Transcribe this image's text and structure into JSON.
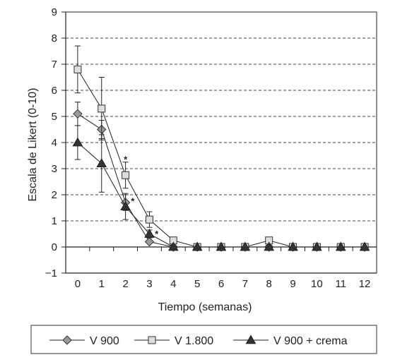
{
  "chart_data": {
    "type": "line",
    "title": "",
    "xlabel": "Tiempo (semanas)",
    "ylabel": "Escala de Likert (0-10)",
    "xlim": [
      -0.5,
      12.5
    ],
    "ylim": [
      -1,
      9
    ],
    "x": [
      0,
      1,
      2,
      3,
      4,
      5,
      6,
      7,
      8,
      9,
      10,
      11,
      12
    ],
    "xticks": [
      "0",
      "1",
      "2",
      "3",
      "4",
      "5",
      "6",
      "7",
      "8",
      "9",
      "10",
      "11",
      "12"
    ],
    "yticks": [
      "−1",
      "0",
      "1",
      "2",
      "3",
      "4",
      "5",
      "6",
      "7",
      "8",
      "9"
    ],
    "grid": "horizontal-dashed",
    "legend_position": "bottom",
    "series": [
      {
        "name": "V 900",
        "marker": "diamond",
        "color": "#999999",
        "values": [
          5.1,
          4.5,
          1.7,
          0.2,
          0,
          0,
          0,
          0,
          0,
          0,
          0,
          0,
          0
        ],
        "err": [
          0.45,
          0.35,
          0.3,
          0,
          0,
          0,
          0,
          0,
          0,
          0,
          0,
          0,
          0
        ]
      },
      {
        "name": "V 1.800",
        "marker": "square",
        "color": "#dddddd",
        "values": [
          6.8,
          5.3,
          2.75,
          1.05,
          0.25,
          0,
          0,
          0,
          0.25,
          0,
          0,
          0,
          0
        ],
        "err": [
          0.9,
          1.2,
          0.5,
          0.3,
          0,
          0,
          0,
          0,
          0,
          0,
          0,
          0,
          0
        ]
      },
      {
        "name": "V 900 + crema",
        "marker": "triangle",
        "color": "#333333",
        "values": [
          4.0,
          3.2,
          1.55,
          0.5,
          0,
          0,
          0,
          0,
          0,
          0,
          0,
          0,
          0
        ],
        "err": [
          0.65,
          1.1,
          0.5,
          0.15,
          0,
          0,
          0,
          0,
          0,
          0,
          0,
          0,
          0
        ]
      }
    ],
    "annotations": [
      {
        "text": "*",
        "x": 2,
        "y": 3.45
      },
      {
        "text": "*",
        "x": 2.3,
        "y": 1.85
      },
      {
        "text": "*",
        "x": 3.3,
        "y": 0.6
      }
    ]
  }
}
